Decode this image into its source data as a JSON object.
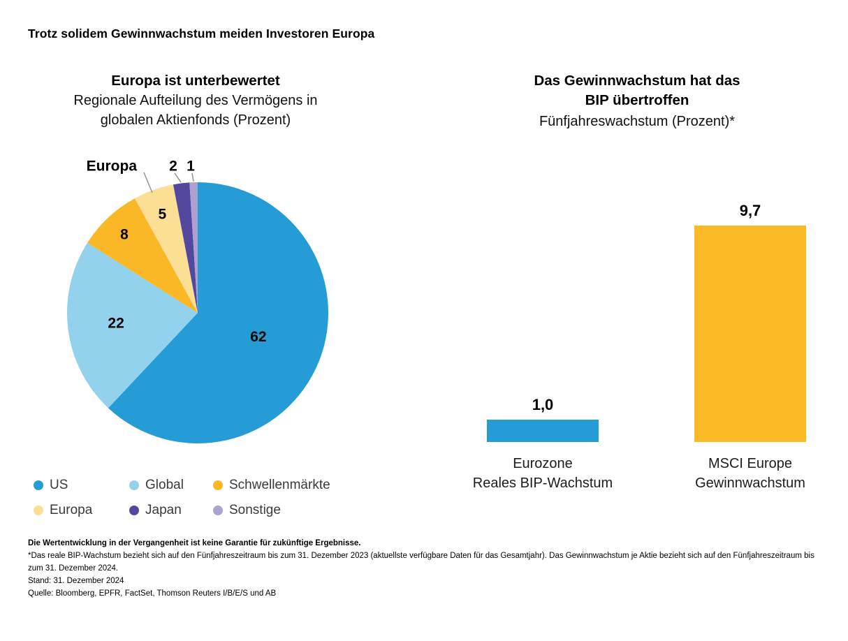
{
  "title": "Trotz solidem Gewinnwachstum meiden Investoren Europa",
  "chart_data": [
    {
      "type": "pie",
      "title": "Europa ist unterbewertet",
      "subtitle": "Regionale Aufteilung des Vermögens in globalen Aktienfonds (Prozent)",
      "subtitle_lines": [
        "Regionale Aufteilung des Vermögens in",
        "globalen Aktienfonds (Prozent)"
      ],
      "unit": "Prozent",
      "start_angle_deg": 0,
      "direction": "clockwise",
      "callout_label": "Europa",
      "legend_position": "bottom",
      "slices": [
        {
          "label": "US",
          "value": 62,
          "color": "#259CD6"
        },
        {
          "label": "Global",
          "value": 22,
          "color": "#92D2EC"
        },
        {
          "label": "Schwellenmärkte",
          "value": 8,
          "color": "#FBB826"
        },
        {
          "label": "Europa",
          "value": 5,
          "color": "#FBDF94"
        },
        {
          "label": "Japan",
          "value": 2,
          "color": "#54489E"
        },
        {
          "label": "Sonstige",
          "value": 1,
          "color": "#ABA2D2"
        }
      ]
    },
    {
      "type": "bar",
      "title": "Das Gewinnwachstum hat das BIP übertroffen",
      "title_lines": [
        "Das Gewinnwachstum hat das",
        "BIP übertroffen"
      ],
      "subtitle": "Fünfjahreswachstum (Prozent)*",
      "ylim": [
        0,
        10
      ],
      "grid": false,
      "bars": [
        {
          "category": "Eurozone Reales BIP-Wachstum",
          "category_lines": [
            "Eurozone",
            "Reales BIP-Wachstum"
          ],
          "value": 1.0,
          "value_label": "1,0",
          "color": "#259CD6"
        },
        {
          "category": "MSCI Europe Gewinnwachstum",
          "category_lines": [
            "MSCI Europe",
            "Gewinnwachstum"
          ],
          "value": 9.7,
          "value_label": "9,7",
          "color": "#FBBA26"
        }
      ]
    }
  ],
  "footer": {
    "disclaimer": "Die Wertentwicklung in der Vergangenheit ist keine Garantie für zukünftige Ergebnisse.",
    "footnote": "*Das reale BIP-Wachstum bezieht sich auf den Fünfjahreszeitraum bis zum 31. Dezember 2023 (aktuellste verfügbare Daten für das Gesamtjahr). Das Gewinnwachstum je Aktie bezieht sich auf den Fünfjahreszeitraum bis zum 31. Dezember 2024.",
    "as_of": "Stand: 31. Dezember 2024",
    "source": "Quelle: Bloomberg, EPFR, FactSet, Thomson Reuters I/B/E/S und AB"
  }
}
